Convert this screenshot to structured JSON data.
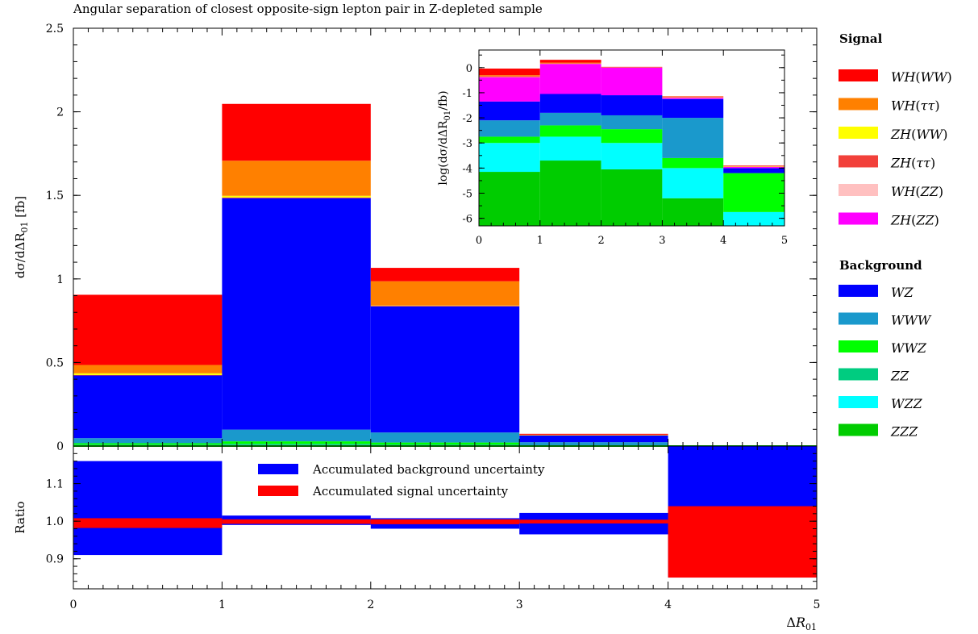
{
  "chart_data": {
    "type": "bar",
    "stacked": true,
    "title": "Angular separation of closest opposite-sign lepton pair in Z-depleted sample",
    "x": {
      "label": "ΔR",
      "label_sub": "01",
      "bin_edges": [
        0,
        1,
        2,
        3,
        4,
        5
      ],
      "range": [
        0,
        5
      ],
      "ticks": [
        "0",
        "1",
        "2",
        "3",
        "4",
        "5"
      ]
    },
    "main_panel": {
      "ylabel": "dσ/dΔR",
      "ylabel_sub": "01",
      "ylabel_unit": "[fb]",
      "ylim": [
        0,
        2.5
      ],
      "ticks": [
        0,
        0.5,
        1,
        1.5,
        2,
        2.5
      ],
      "tick_labels": [
        "0",
        "0.5",
        "1",
        "1.5",
        "2",
        "2.5"
      ],
      "stack_order": [
        "ZZZ",
        "WZZ",
        "ZZ",
        "WWZ",
        "WWW",
        "WZ",
        "ZH(ZZ)",
        "WH(ZZ)",
        "ZH(ττ)",
        "ZH(WW)",
        "WH(ττ)",
        "WH(WW)"
      ],
      "series": [
        {
          "name": "ZZZ",
          "values": [
            0.0002,
            0.0004,
            0.0002,
            0.0001,
            0.0
          ]
        },
        {
          "name": "WZZ",
          "values": [
            0.003,
            0.005,
            0.003,
            0.0001,
            0.0
          ]
        },
        {
          "name": "ZZ",
          "values": [
            0.005,
            0.008,
            0.006,
            0.001,
            0.0
          ]
        },
        {
          "name": "WWZ",
          "values": [
            0.009,
            0.015,
            0.012,
            0.002,
            0.0
          ]
        },
        {
          "name": "WWW",
          "values": [
            0.03,
            0.07,
            0.06,
            0.02,
            0.0
          ]
        },
        {
          "name": "WZ",
          "values": [
            0.375,
            1.385,
            0.755,
            0.04,
            0.0
          ]
        },
        {
          "name": "ZH(ZZ)",
          "values": [
            0.0,
            0.0,
            0.0,
            0.0,
            0.0
          ]
        },
        {
          "name": "WH(ZZ)",
          "values": [
            0.0,
            0.0,
            0.0,
            0.0,
            0.0
          ]
        },
        {
          "name": "ZH(ττ)",
          "values": [
            0.003,
            0.004,
            0.003,
            0.002,
            0.0
          ]
        },
        {
          "name": "ZH(WW)",
          "values": [
            0.01,
            0.01,
            0.002,
            0.001,
            0.0
          ]
        },
        {
          "name": "WH(ττ)",
          "values": [
            0.05,
            0.21,
            0.145,
            0.002,
            0.0
          ]
        },
        {
          "name": "WH(WW)",
          "values": [
            0.42,
            0.34,
            0.08,
            0.005,
            0.0
          ]
        }
      ]
    },
    "inset": {
      "ylabel": "log(dσ/dΔR",
      "ylabel_sub": "01",
      "ylabel_unit": "/fb)",
      "ylim": [
        -6.3,
        0.7
      ],
      "ticks": [
        0,
        -1,
        -2,
        -3,
        -4,
        -5,
        -6
      ],
      "tick_labels": [
        "0",
        "-1",
        "-2",
        "-3",
        "-4",
        "-5",
        "-6"
      ],
      "stack_order": [
        "ZZZ",
        "ZZ",
        "WZZ",
        "WWZ",
        "WWW",
        "WZ",
        "ZH(ZZ)",
        "WH(ZZ)",
        "ZH(WW)",
        "ZH(ττ)",
        "WH(ττ)",
        "WH(WW)"
      ],
      "levels": [
        {
          "name": "ZZZ",
          "values": [
            -4.15,
            -3.7,
            -4.05,
            -5.2,
            -6.3
          ]
        },
        {
          "name": "ZZ",
          "values": [
            -4.15,
            -3.7,
            -4.05,
            -5.2,
            -6.3
          ]
        },
        {
          "name": "WZZ",
          "values": [
            -3.0,
            -2.75,
            -3.0,
            -4.0,
            -5.75
          ]
        },
        {
          "name": "WWZ",
          "values": [
            -2.75,
            -2.3,
            -2.45,
            -3.6,
            -4.2
          ]
        },
        {
          "name": "WWW",
          "values": [
            -2.1,
            -1.8,
            -1.9,
            -2.0,
            -4.2
          ]
        },
        {
          "name": "WZ",
          "values": [
            -1.35,
            -1.05,
            -1.1,
            -1.25,
            -4.0
          ]
        },
        {
          "name": "ZH(ZZ)",
          "values": [
            -0.38,
            0.15,
            0.0,
            -1.2,
            -3.95
          ]
        },
        {
          "name": "WH(ZZ)",
          "values": [
            -0.38,
            0.15,
            0.0,
            -1.2,
            -3.95
          ]
        },
        {
          "name": "ZH(WW)",
          "values": [
            -0.37,
            0.16,
            0.0,
            -1.19,
            -3.94
          ]
        },
        {
          "name": "ZH(ττ)",
          "values": [
            -0.34,
            0.17,
            0.01,
            -1.17,
            -3.93
          ]
        },
        {
          "name": "WH(ττ)",
          "values": [
            -0.3,
            0.2,
            0.02,
            -1.15,
            -3.92
          ]
        },
        {
          "name": "WH(WW)",
          "values": [
            -0.04,
            0.31,
            0.03,
            -1.14,
            -3.9
          ]
        }
      ]
    },
    "ratio_panel": {
      "ylabel": "Ratio",
      "ylim": [
        0.82,
        1.2
      ],
      "ticks": [
        0.9,
        1.0,
        1.1
      ],
      "tick_labels": [
        "0.9",
        "1.0",
        "1.1"
      ],
      "background_uncertainty": {
        "name": "Accumulated background uncertainty",
        "low": [
          0.91,
          0.99,
          0.98,
          0.965,
          0.85
        ],
        "high": [
          1.16,
          1.015,
          1.008,
          1.022,
          1.2
        ]
      },
      "signal_uncertainty": {
        "name": "Accumulated signal uncertainty",
        "low": [
          0.982,
          0.993,
          0.992,
          0.994,
          0.85
        ],
        "high": [
          1.008,
          1.005,
          1.005,
          1.004,
          1.04
        ]
      }
    },
    "legend": {
      "placement": "right",
      "signal_title": "Signal",
      "background_title": "Background",
      "signal": [
        "WH(WW)",
        "WH(ττ)",
        "ZH(WW)",
        "ZH(ττ)",
        "WH(ZZ)",
        "ZH(ZZ)"
      ],
      "background": [
        "WZ",
        "WWW",
        "WWZ",
        "ZZ",
        "WZZ",
        "ZZZ"
      ]
    },
    "colors": {
      "WH(WW)": "#ff0000",
      "WH(ττ)": "#ff8000",
      "ZH(WW)": "#ffff00",
      "ZH(ττ)": "#f2403a",
      "WH(ZZ)": "#ffc0c0",
      "ZH(ZZ)": "#ff00ff",
      "WZ": "#0000ff",
      "WWW": "#1a99cc",
      "WWZ": "#00ff00",
      "ZZ": "#00cc80",
      "WZZ": "#00ffff",
      "ZZZ": "#00cc00",
      "bg_unc": "#0000ff",
      "sig_unc": "#ff0000"
    },
    "grid": false
  }
}
